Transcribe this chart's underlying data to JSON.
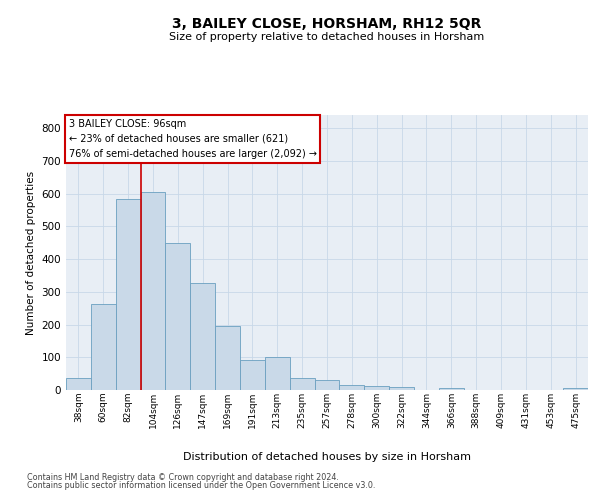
{
  "title": "3, BAILEY CLOSE, HORSHAM, RH12 5QR",
  "subtitle": "Size of property relative to detached houses in Horsham",
  "xlabel": "Distribution of detached houses by size in Horsham",
  "ylabel": "Number of detached properties",
  "categories": [
    "38sqm",
    "60sqm",
    "82sqm",
    "104sqm",
    "126sqm",
    "147sqm",
    "169sqm",
    "191sqm",
    "213sqm",
    "235sqm",
    "257sqm",
    "278sqm",
    "300sqm",
    "322sqm",
    "344sqm",
    "366sqm",
    "388sqm",
    "409sqm",
    "431sqm",
    "453sqm",
    "475sqm"
  ],
  "values": [
    37,
    262,
    582,
    605,
    450,
    328,
    195,
    92,
    102,
    37,
    32,
    15,
    12,
    9,
    0,
    7,
    0,
    0,
    0,
    0,
    7
  ],
  "bar_color": "#c9d9e8",
  "bar_edge_color": "#6a9fc0",
  "grid_color": "#c8d8e8",
  "bg_color": "#e8eef5",
  "annotation_box_text_line1": "3 BAILEY CLOSE: 96sqm",
  "annotation_box_text_line2": "← 23% of detached houses are smaller (621)",
  "annotation_box_text_line3": "76% of semi-detached houses are larger (2,092) →",
  "annotation_box_color": "#cc0000",
  "vline_x": 2.5,
  "ylim": [
    0,
    840
  ],
  "yticks": [
    0,
    100,
    200,
    300,
    400,
    500,
    600,
    700,
    800
  ],
  "footer_line1": "Contains HM Land Registry data © Crown copyright and database right 2024.",
  "footer_line2": "Contains public sector information licensed under the Open Government Licence v3.0."
}
